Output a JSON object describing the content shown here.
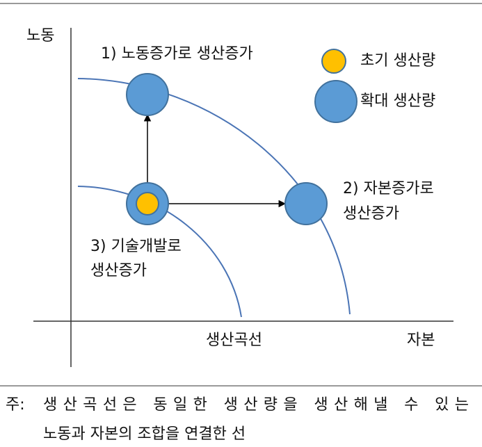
{
  "diagram": {
    "axes": {
      "y_label": "노동",
      "x_label": "자본"
    },
    "curve_label": "생산곡선",
    "annotations": [
      {
        "lines": [
          "1) 노동증가로 생산증가"
        ]
      },
      {
        "lines": [
          "2) 자본증가로",
          "생산증가"
        ]
      },
      {
        "lines": [
          "3) 기술개발로",
          "생산증가"
        ]
      }
    ],
    "legend": [
      {
        "label": "초기 생산량"
      },
      {
        "label": "확대 생산량"
      }
    ]
  },
  "note": {
    "marker": "주:",
    "lines": [
      "생산곡선은 동일한 생산량을 생산해낼 수 있는",
      "노동과 자본의 조합을 연결한 선"
    ]
  }
}
